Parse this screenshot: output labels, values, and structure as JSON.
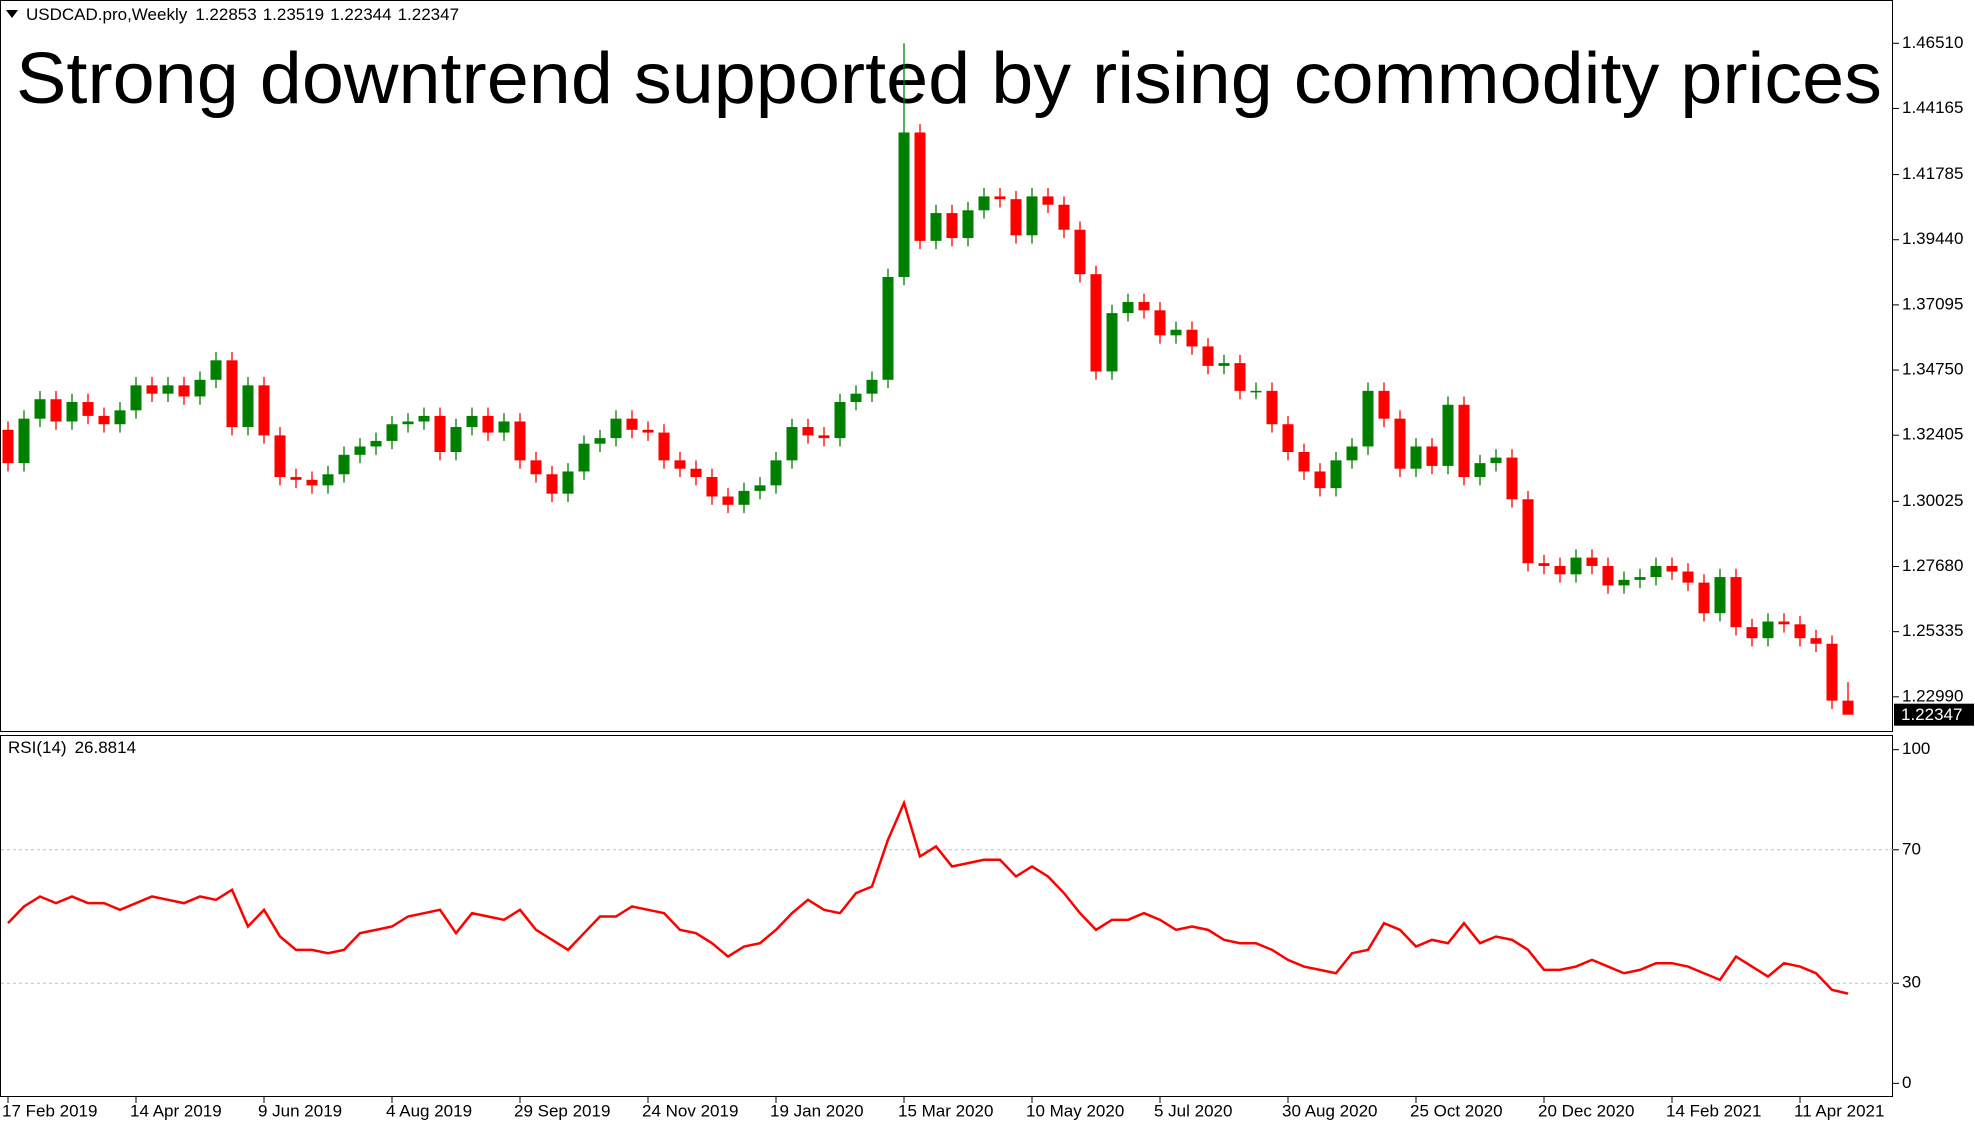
{
  "chart_data": [
    {
      "type": "candlestick",
      "symbol": "USDCAD.pro,Weekly",
      "title": "Strong downtrend supported by rising commodity prices",
      "categories": [
        "17 Feb 2019",
        null,
        null,
        null,
        null,
        null,
        null,
        null,
        "14 Apr 2019",
        null,
        null,
        null,
        null,
        null,
        null,
        null,
        "9 Jun 2019",
        null,
        null,
        null,
        null,
        null,
        null,
        null,
        "4 Aug 2019",
        null,
        null,
        null,
        null,
        null,
        null,
        null,
        "29 Sep 2019",
        null,
        null,
        null,
        null,
        null,
        null,
        null,
        "24 Nov 2019",
        null,
        null,
        null,
        null,
        null,
        null,
        null,
        "19 Jan 2020",
        null,
        null,
        null,
        null,
        null,
        null,
        null,
        "15 Mar 2020",
        null,
        null,
        null,
        null,
        null,
        null,
        null,
        "10 May 2020",
        null,
        null,
        null,
        null,
        null,
        null,
        null,
        "5 Jul 2020",
        null,
        null,
        null,
        null,
        null,
        null,
        null,
        "30 Aug 2020",
        null,
        null,
        null,
        null,
        null,
        null,
        null,
        "25 Oct 2020",
        null,
        null,
        null,
        null,
        null,
        null,
        null,
        "20 Dec 2020",
        null,
        null,
        null,
        null,
        null,
        null,
        null,
        "14 Feb 2021",
        null,
        null,
        null,
        null,
        null,
        null,
        null,
        "11 Apr 2021",
        null,
        null,
        null
      ],
      "ohlc": [
        [
          1.326,
          1.329,
          1.311,
          1.314
        ],
        [
          1.314,
          1.333,
          1.311,
          1.33
        ],
        [
          1.33,
          1.34,
          1.327,
          1.337
        ],
        [
          1.337,
          1.34,
          1.326,
          1.329
        ],
        [
          1.329,
          1.339,
          1.326,
          1.336
        ],
        [
          1.336,
          1.339,
          1.328,
          1.331
        ],
        [
          1.331,
          1.334,
          1.325,
          1.328
        ],
        [
          1.328,
          1.336,
          1.325,
          1.333
        ],
        [
          1.333,
          1.345,
          1.33,
          1.342
        ],
        [
          1.342,
          1.345,
          1.336,
          1.339
        ],
        [
          1.339,
          1.345,
          1.336,
          1.342
        ],
        [
          1.342,
          1.345,
          1.335,
          1.338
        ],
        [
          1.338,
          1.347,
          1.335,
          1.344
        ],
        [
          1.344,
          1.354,
          1.341,
          1.351
        ],
        [
          1.351,
          1.354,
          1.324,
          1.327
        ],
        [
          1.327,
          1.345,
          1.324,
          1.342
        ],
        [
          1.342,
          1.345,
          1.321,
          1.324
        ],
        [
          1.324,
          1.327,
          1.306,
          1.309
        ],
        [
          1.309,
          1.312,
          1.305,
          1.308
        ],
        [
          1.308,
          1.311,
          1.303,
          1.306
        ],
        [
          1.306,
          1.313,
          1.303,
          1.31
        ],
        [
          1.31,
          1.32,
          1.307,
          1.317
        ],
        [
          1.317,
          1.323,
          1.314,
          1.32
        ],
        [
          1.32,
          1.325,
          1.317,
          1.322
        ],
        [
          1.322,
          1.331,
          1.319,
          1.328
        ],
        [
          1.328,
          1.332,
          1.325,
          1.329
        ],
        [
          1.329,
          1.334,
          1.326,
          1.331
        ],
        [
          1.331,
          1.334,
          1.315,
          1.318
        ],
        [
          1.318,
          1.33,
          1.315,
          1.327
        ],
        [
          1.327,
          1.334,
          1.324,
          1.331
        ],
        [
          1.331,
          1.334,
          1.322,
          1.325
        ],
        [
          1.325,
          1.332,
          1.322,
          1.329
        ],
        [
          1.329,
          1.332,
          1.312,
          1.315
        ],
        [
          1.315,
          1.318,
          1.307,
          1.31
        ],
        [
          1.31,
          1.313,
          1.3,
          1.303
        ],
        [
          1.303,
          1.314,
          1.3,
          1.311
        ],
        [
          1.311,
          1.324,
          1.308,
          1.321
        ],
        [
          1.321,
          1.326,
          1.318,
          1.323
        ],
        [
          1.323,
          1.333,
          1.32,
          1.33
        ],
        [
          1.33,
          1.333,
          1.323,
          1.326
        ],
        [
          1.326,
          1.329,
          1.322,
          1.325
        ],
        [
          1.325,
          1.328,
          1.312,
          1.315
        ],
        [
          1.315,
          1.318,
          1.309,
          1.312
        ],
        [
          1.312,
          1.315,
          1.306,
          1.309
        ],
        [
          1.309,
          1.312,
          1.299,
          1.302
        ],
        [
          1.302,
          1.305,
          1.296,
          1.299
        ],
        [
          1.299,
          1.307,
          1.296,
          1.304
        ],
        [
          1.304,
          1.309,
          1.301,
          1.306
        ],
        [
          1.306,
          1.318,
          1.303,
          1.315
        ],
        [
          1.315,
          1.33,
          1.312,
          1.327
        ],
        [
          1.327,
          1.33,
          1.321,
          1.324
        ],
        [
          1.324,
          1.327,
          1.32,
          1.323
        ],
        [
          1.323,
          1.339,
          1.32,
          1.336
        ],
        [
          1.336,
          1.342,
          1.333,
          1.339
        ],
        [
          1.339,
          1.347,
          1.336,
          1.344
        ],
        [
          1.344,
          1.384,
          1.341,
          1.381
        ],
        [
          1.381,
          1.4651,
          1.378,
          1.433
        ],
        [
          1.433,
          1.436,
          1.391,
          1.394
        ],
        [
          1.394,
          1.407,
          1.391,
          1.404
        ],
        [
          1.404,
          1.407,
          1.392,
          1.395
        ],
        [
          1.395,
          1.408,
          1.392,
          1.405
        ],
        [
          1.405,
          1.413,
          1.402,
          1.41
        ],
        [
          1.41,
          1.413,
          1.406,
          1.409
        ],
        [
          1.409,
          1.412,
          1.393,
          1.396
        ],
        [
          1.396,
          1.413,
          1.393,
          1.41
        ],
        [
          1.41,
          1.413,
          1.404,
          1.407
        ],
        [
          1.407,
          1.41,
          1.395,
          1.398
        ],
        [
          1.398,
          1.401,
          1.379,
          1.382
        ],
        [
          1.382,
          1.385,
          1.344,
          1.347
        ],
        [
          1.347,
          1.371,
          1.344,
          1.368
        ],
        [
          1.368,
          1.375,
          1.365,
          1.372
        ],
        [
          1.372,
          1.375,
          1.366,
          1.369
        ],
        [
          1.369,
          1.372,
          1.357,
          1.36
        ],
        [
          1.36,
          1.365,
          1.357,
          1.362
        ],
        [
          1.362,
          1.365,
          1.353,
          1.356
        ],
        [
          1.356,
          1.359,
          1.346,
          1.349
        ],
        [
          1.349,
          1.353,
          1.346,
          1.35
        ],
        [
          1.35,
          1.353,
          1.337,
          1.34
        ],
        [
          1.34,
          1.343,
          1.337,
          1.34
        ],
        [
          1.34,
          1.343,
          1.325,
          1.328
        ],
        [
          1.328,
          1.331,
          1.315,
          1.318
        ],
        [
          1.318,
          1.321,
          1.308,
          1.311
        ],
        [
          1.311,
          1.314,
          1.302,
          1.305
        ],
        [
          1.305,
          1.318,
          1.302,
          1.315
        ],
        [
          1.315,
          1.323,
          1.312,
          1.32
        ],
        [
          1.32,
          1.343,
          1.317,
          1.34
        ],
        [
          1.34,
          1.343,
          1.327,
          1.33
        ],
        [
          1.33,
          1.333,
          1.309,
          1.312
        ],
        [
          1.312,
          1.323,
          1.309,
          1.32
        ],
        [
          1.32,
          1.323,
          1.31,
          1.313
        ],
        [
          1.313,
          1.338,
          1.31,
          1.335
        ],
        [
          1.335,
          1.338,
          1.306,
          1.309
        ],
        [
          1.309,
          1.317,
          1.306,
          1.314
        ],
        [
          1.314,
          1.319,
          1.311,
          1.316
        ],
        [
          1.316,
          1.319,
          1.298,
          1.301
        ],
        [
          1.301,
          1.304,
          1.275,
          1.278
        ],
        [
          1.278,
          1.281,
          1.274,
          1.277
        ],
        [
          1.277,
          1.28,
          1.271,
          1.274
        ],
        [
          1.274,
          1.283,
          1.271,
          1.28
        ],
        [
          1.28,
          1.283,
          1.274,
          1.277
        ],
        [
          1.277,
          1.28,
          1.267,
          1.27
        ],
        [
          1.27,
          1.275,
          1.267,
          1.272
        ],
        [
          1.272,
          1.276,
          1.269,
          1.273
        ],
        [
          1.273,
          1.28,
          1.27,
          1.277
        ],
        [
          1.277,
          1.28,
          1.272,
          1.275
        ],
        [
          1.275,
          1.278,
          1.268,
          1.271
        ],
        [
          1.271,
          1.274,
          1.257,
          1.26
        ],
        [
          1.26,
          1.276,
          1.257,
          1.273
        ],
        [
          1.273,
          1.276,
          1.252,
          1.255
        ],
        [
          1.255,
          1.258,
          1.248,
          1.251
        ],
        [
          1.251,
          1.26,
          1.248,
          1.257
        ],
        [
          1.257,
          1.26,
          1.253,
          1.256
        ],
        [
          1.256,
          1.259,
          1.248,
          1.251
        ],
        [
          1.251,
          1.254,
          1.246,
          1.249
        ],
        [
          1.249,
          1.252,
          1.22553,
          1.22853
        ],
        [
          1.22853,
          1.23519,
          1.22344,
          1.22347
        ]
      ],
      "up_color": "#008000",
      "down_color": "#ff0000",
      "title_color": "#dc143c",
      "ylim": [
        1.2176,
        1.4742
      ],
      "yticks": [
        {
          "value": 1.4651,
          "label": "1.46510"
        },
        1.44165,
        1.41785,
        {
          "value": 1.3944,
          "label": "1.39440"
        },
        1.37095,
        {
          "value": 1.3475,
          "label": "1.34750"
        },
        1.32405,
        1.30025,
        {
          "value": 1.2768,
          "label": "1.27680"
        },
        1.25335,
        {
          "value": 1.2299,
          "label": "1.22990"
        }
      ]
    },
    {
      "type": "line",
      "label": "RSI(14)",
      "color": "#ff0000",
      "values": [
        48,
        53,
        56,
        54,
        56,
        54,
        54,
        52,
        54,
        56,
        55,
        54,
        56,
        55,
        58,
        47,
        52,
        44,
        40,
        40,
        39,
        40,
        45,
        46,
        47,
        50,
        51,
        52,
        45,
        51,
        50,
        49,
        52,
        46,
        43,
        40,
        45,
        50,
        50,
        53,
        52,
        51,
        46,
        45,
        42,
        38,
        41,
        42,
        46,
        51,
        55,
        52,
        51,
        57,
        59,
        73,
        84,
        68,
        71,
        65,
        66,
        67,
        67,
        62,
        65,
        62,
        57,
        51,
        46,
        49,
        49,
        51,
        49,
        46,
        47,
        46,
        43,
        42,
        42,
        40,
        37,
        35,
        34,
        33,
        39,
        40,
        48,
        46,
        41,
        43,
        42,
        48,
        42,
        44,
        43,
        40,
        34,
        34,
        35,
        37,
        35,
        33,
        34,
        36,
        36,
        35,
        33,
        31,
        38,
        35,
        32,
        36,
        35,
        33,
        28,
        26.8814
      ],
      "ylim": [
        -3.8,
        103.8
      ],
      "yticks": [
        0,
        30,
        70,
        100
      ],
      "levels": [
        30,
        70
      ]
    }
  ]
}
